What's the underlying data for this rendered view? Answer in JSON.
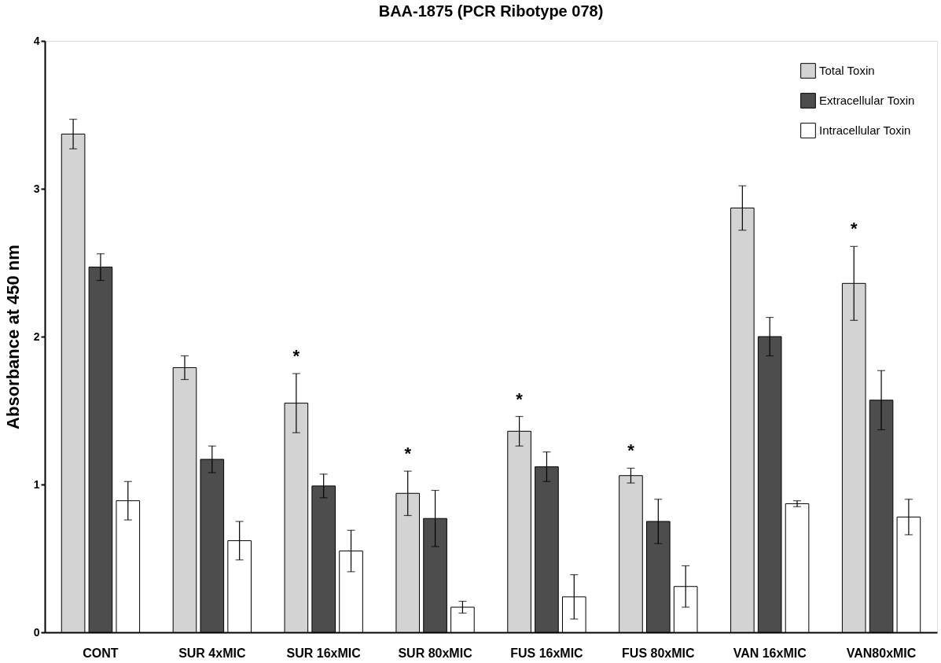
{
  "chart_data": {
    "type": "bar",
    "title": "BAA-1875 (PCR Ribotype 078)",
    "ylabel": "Absorbance at 450 nm",
    "categories": [
      "CONT",
      "SUR 4xMIC",
      "SUR 16xMIC",
      "SUR 80xMIC",
      "FUS 16xMIC",
      "FUS 80xMIC",
      "VAN 16xMIC",
      "VAN80xMIC"
    ],
    "series": [
      {
        "name": "Total Toxin",
        "color": "#d3d3d3",
        "values": [
          3.37,
          1.79,
          1.55,
          0.94,
          1.36,
          1.06,
          2.87,
          2.36
        ],
        "errors": [
          0.1,
          0.08,
          0.2,
          0.15,
          0.1,
          0.05,
          0.15,
          0.25
        ],
        "value_labels": [
          null,
          null,
          "*",
          "*",
          "*",
          "*",
          null,
          "*"
        ]
      },
      {
        "name": "Extracellular Toxin",
        "color": "#4d4d4d",
        "values": [
          2.47,
          1.17,
          0.99,
          0.77,
          1.12,
          0.75,
          2.0,
          1.57
        ],
        "errors": [
          0.09,
          0.09,
          0.08,
          0.19,
          0.1,
          0.15,
          0.13,
          0.2
        ]
      },
      {
        "name": "Intracellular Toxin",
        "color": "#ffffff",
        "values": [
          0.89,
          0.62,
          0.55,
          0.17,
          0.24,
          0.31,
          0.87,
          0.78
        ],
        "errors": [
          0.13,
          0.13,
          0.14,
          0.04,
          0.15,
          0.14,
          0.02,
          0.12
        ]
      }
    ],
    "ylim": [
      0,
      4
    ],
    "yticks": [
      0,
      1,
      2,
      3,
      4
    ],
    "grid": false,
    "legend": "top right"
  }
}
